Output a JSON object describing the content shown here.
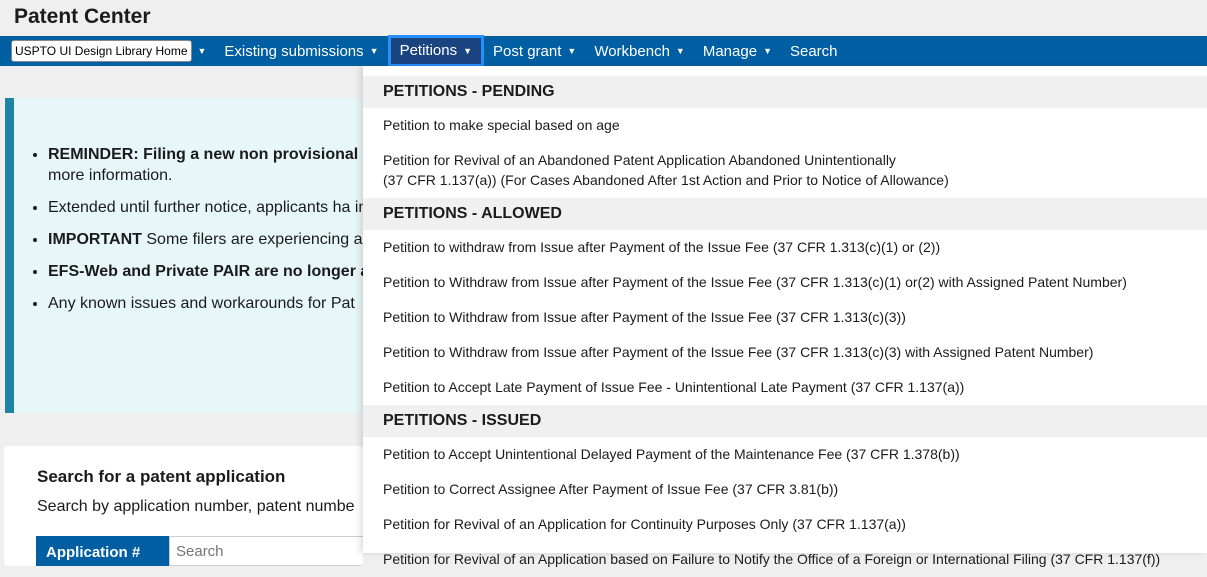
{
  "app_title": "Patent Center",
  "nav": {
    "home": "USPTO UI Design Library Home",
    "items": [
      "Existing submissions",
      "Petitions",
      "Post grant",
      "Workbench",
      "Manage"
    ],
    "search": "Search"
  },
  "alert": {
    "bullets": [
      {
        "bold": "REMINDER: Filing a new non provisional 1",
        "text": "more information."
      },
      {
        "bold": "",
        "text": "Extended until further notice, applicants ha information."
      },
      {
        "bold": "IMPORTANT",
        "text": " Some filers are experiencing and is now enforced in Patent Center.  Plea"
      },
      {
        "bold": "EFS-Web and Private PAIR are no longer a",
        "text": ""
      },
      {
        "bold": "",
        "text": "Any known issues and workarounds for Pat"
      }
    ]
  },
  "search_card": {
    "title": "Search for a patent application",
    "subtitle": "Search by application number, patent numbe",
    "tab": "Application #",
    "placeholder": "Search"
  },
  "menu": {
    "sections": [
      {
        "title": "PETITIONS - PENDING",
        "items": [
          "Petition to make special based on age",
          "Petition for Revival of an Abandoned Patent Application Abandoned Unintentionally\n(37 CFR 1.137(a)) (For Cases Abandoned After 1st Action and Prior to Notice of Allowance)"
        ]
      },
      {
        "title": "PETITIONS - ALLOWED",
        "items": [
          "Petition to withdraw from Issue after Payment of the Issue Fee (37 CFR 1.313(c)(1) or (2))",
          "Petition to Withdraw from Issue after Payment of the Issue Fee (37 CFR 1.313(c)(1) or(2) with Assigned Patent Number)",
          "Petition to Withdraw from Issue after Payment of the Issue Fee (37 CFR 1.313(c)(3))",
          "Petition to Withdraw from Issue after Payment of the Issue Fee (37 CFR 1.313(c)(3) with Assigned Patent Number)",
          "Petition to Accept Late Payment of Issue Fee - Unintentional Late Payment (37 CFR 1.137(a))"
        ]
      },
      {
        "title": "PETITIONS - ISSUED",
        "items": [
          "Petition to Accept Unintentional Delayed Payment of the Maintenance Fee (37 CFR 1.378(b))",
          "Petition to Correct Assignee After Payment of Issue Fee (37 CFR 3.81(b))",
          "Petition for Revival of an Application for Continuity Purposes Only (37 CFR 1.137(a))",
          "Petition for Revival of an Application based on Failure to Notify the Office of a Foreign or International Filing (37 CFR 1.137(f))"
        ]
      }
    ]
  }
}
